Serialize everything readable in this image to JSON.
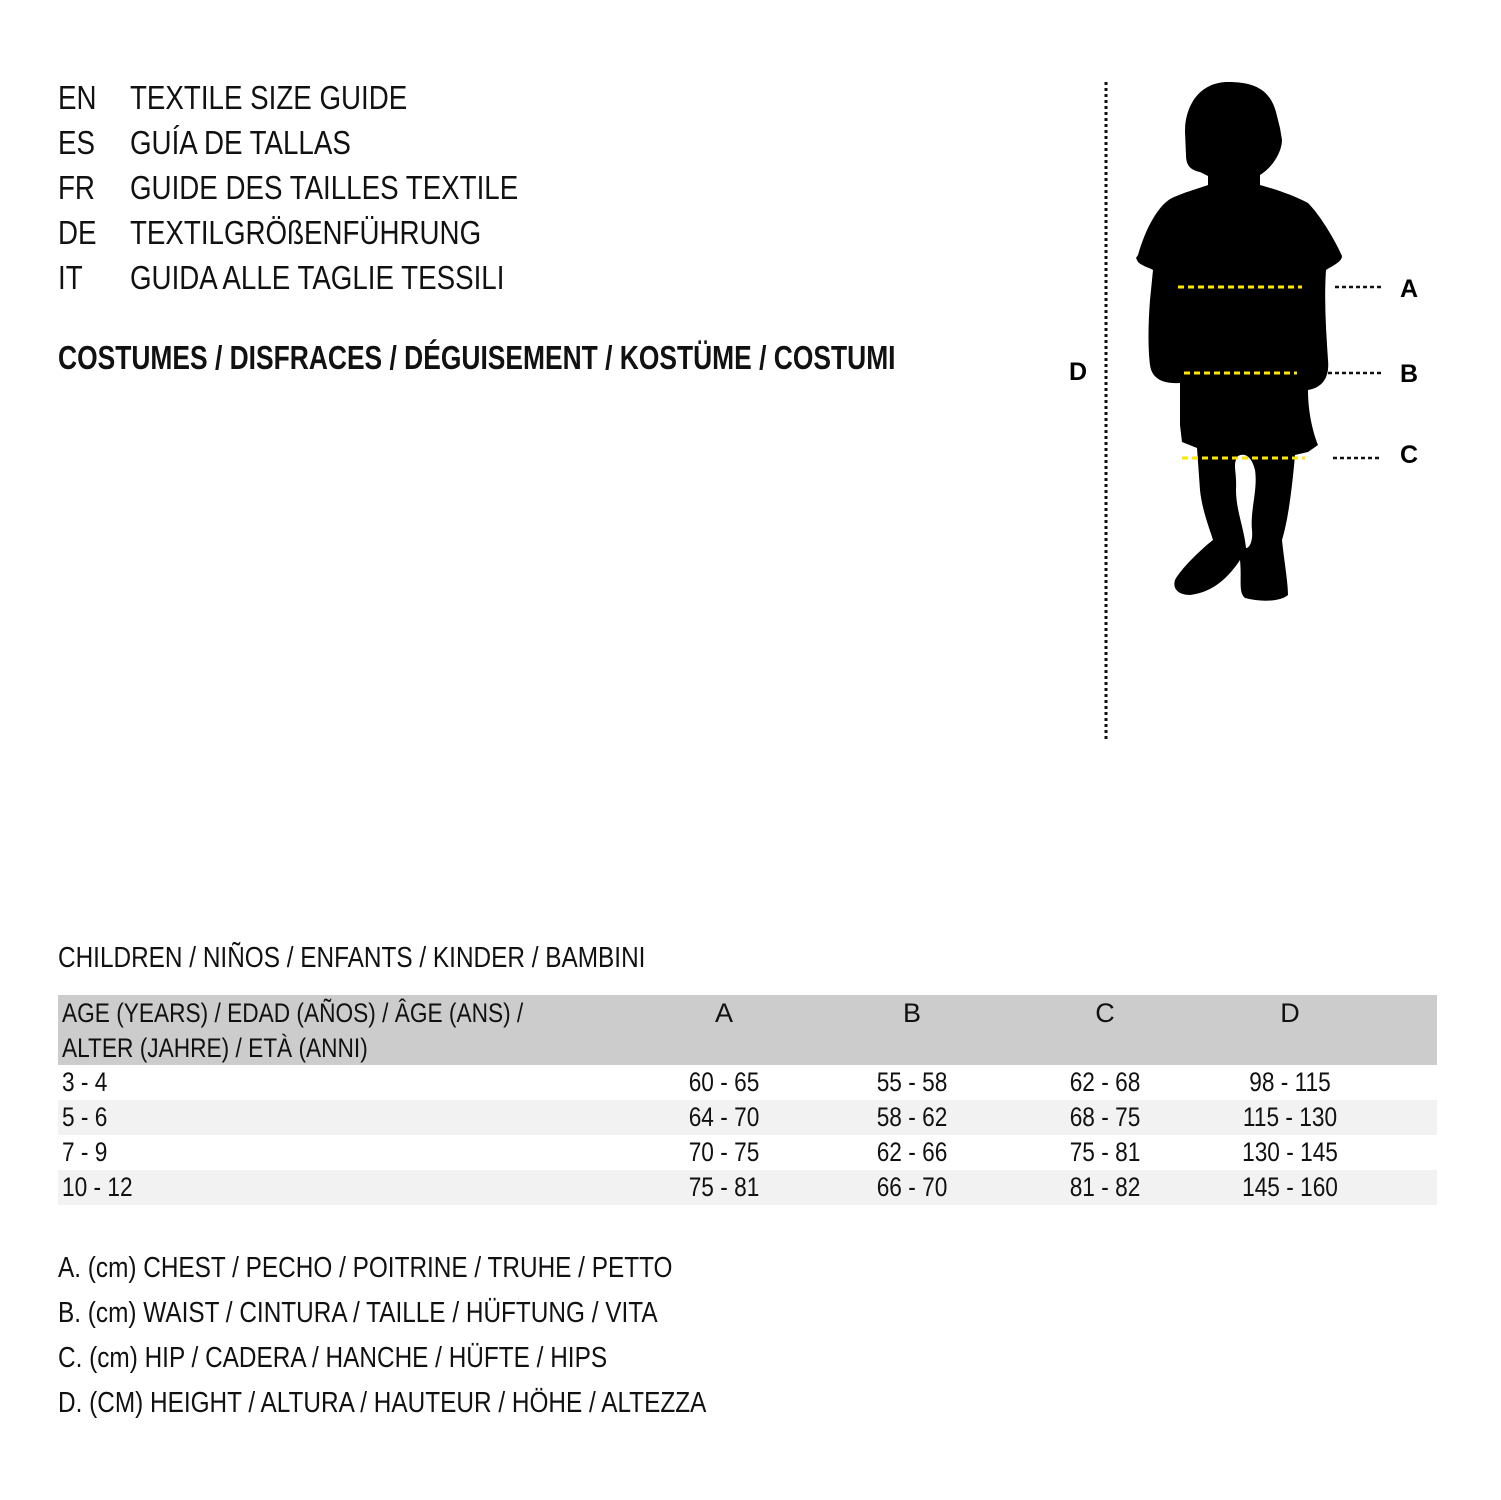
{
  "title_lines": [
    {
      "code": "EN",
      "text": "TEXTILE SIZE GUIDE"
    },
    {
      "code": "ES",
      "text": "GUÍA DE TALLAS"
    },
    {
      "code": "FR",
      "text": "GUIDE DES TAILLES TEXTILE"
    },
    {
      "code": "DE",
      "text": "TEXTILGRÖßENFÜHRUNG"
    },
    {
      "code": "IT",
      "text": "GUIDA ALLE TAGLIE TESSILI"
    }
  ],
  "category": "COSTUMES / DISFRACES / DÉGUISEMENT / KOSTÜME / COSTUMI",
  "figure": {
    "labels": {
      "a": "A",
      "b": "B",
      "c": "C",
      "d": "D"
    },
    "measure_line_color": "#ffe600"
  },
  "table": {
    "caption": "CHILDREN / NIÑOS / ENFANTS / KINDER / BAMBINI",
    "header": {
      "age_line1": "AGE (YEARS) / EDAD (AÑOS) / ÂGE (ANS) /",
      "age_line2": "ALTER (JAHRE) / ETÀ (ANNI)",
      "a": "A",
      "b": "B",
      "c": "C",
      "d": "D"
    },
    "rows": [
      {
        "age": "3 - 4",
        "a": "60 - 65",
        "b": "55 - 58",
        "c": "62 - 68",
        "d": "98 - 115"
      },
      {
        "age": "5 - 6",
        "a": "64 - 70",
        "b": "58 - 62",
        "c": "68 - 75",
        "d": "115 - 130"
      },
      {
        "age": "7 - 9",
        "a": "70 - 75",
        "b": "62 - 66",
        "c": "75 - 81",
        "d": "130 - 145"
      },
      {
        "age": "10 - 12",
        "a": "75 - 81",
        "b": "66 - 70",
        "c": "81 - 82",
        "d": "145 - 160"
      }
    ]
  },
  "legend": [
    "A. (cm) CHEST / PECHO / POITRINE / TRUHE / PETTO",
    "B. (cm) WAIST / CINTURA / TAILLE / HÜFTUNG / VITA",
    "C. (cm) HIP / CADERA / HANCHE / HÜFTE / HIPS",
    "D. (CM) HEIGHT / ALTURA / HAUTEUR / HÖHE / ALTEZZA"
  ]
}
